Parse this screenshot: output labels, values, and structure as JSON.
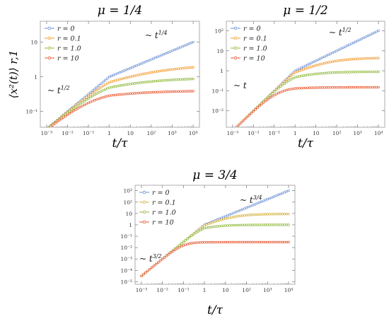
{
  "figure": {
    "ylabel": "⟨x²(t)⟩ r,1",
    "colors": {
      "r0": "#6b8fd6",
      "r01": "#f29a2e",
      "r1": "#8fb83a",
      "r10": "#e8552f"
    }
  },
  "chart_data": [
    {
      "type": "line",
      "title": "μ = 1/4",
      "xlabel": "t/τ",
      "ylabel": "⟨x²(t)⟩ r,1",
      "xscale": "log",
      "yscale": "log",
      "xlim": [
        0.0005,
        20000
      ],
      "ylim": [
        0.035,
        40
      ],
      "xticks": [
        "10⁻³",
        "10⁻²",
        "10⁻¹",
        "1",
        "10",
        "10²",
        "10³",
        "10⁴"
      ],
      "yticks": [
        "10⁻¹",
        "1",
        "10"
      ],
      "legend": "top-left",
      "alpha": 0.5,
      "beta": 0.25,
      "annotations": [
        "~ t^{1/4}",
        "~ t^{1/2}"
      ],
      "series": [
        {
          "name": "r = 0",
          "color": "#6b8fd6",
          "plateau": null
        },
        {
          "name": "r = 0.1",
          "color": "#f29a2e",
          "plateau": 2.3
        },
        {
          "name": "r = 1.0",
          "color": "#8fb83a",
          "plateau": 0.95
        },
        {
          "name": "r = 10",
          "color": "#e8552f",
          "plateau": 0.4
        }
      ]
    },
    {
      "type": "line",
      "title": "μ = 1/2",
      "xlabel": "t/τ",
      "ylabel": "",
      "xscale": "log",
      "yscale": "log",
      "xlim": [
        0.0005,
        20000
      ],
      "ylim": [
        0.0015,
        300
      ],
      "xticks": [
        "10⁻³",
        "10⁻²",
        "10⁻¹",
        "1",
        "10",
        "10²",
        "10³",
        "10⁴"
      ],
      "yticks": [
        "10⁻²",
        "10⁻¹",
        "1",
        "10",
        "10²"
      ],
      "legend": "top-left",
      "alpha": 1.0,
      "beta": 0.5,
      "annotations": [
        "~ t^{1/2}",
        "~ t"
      ],
      "series": [
        {
          "name": "r = 0",
          "color": "#6b8fd6",
          "plateau": null
        },
        {
          "name": "r = 0.1",
          "color": "#f29a2e",
          "plateau": 4.5
        },
        {
          "name": "r = 1.0",
          "color": "#8fb83a",
          "plateau": 0.9
        },
        {
          "name": "r = 10",
          "color": "#e8552f",
          "plateau": 0.15
        }
      ]
    },
    {
      "type": "line",
      "title": "μ = 3/4",
      "xlabel": "t/τ",
      "ylabel": "",
      "xscale": "log",
      "yscale": "log",
      "xlim": [
        0.0005,
        20000
      ],
      "ylim": [
        6e-06,
        3000
      ],
      "xticks": [
        "10⁻³",
        "10⁻²",
        "10⁻¹",
        "1",
        "10",
        "10²",
        "10³",
        "10⁴"
      ],
      "yticks": [
        "10⁻⁵",
        "10⁻⁴",
        "10⁻³",
        "10⁻²",
        "10⁻¹",
        "1",
        "10",
        "10²",
        "10³"
      ],
      "legend": "top-left",
      "alpha": 1.5,
      "beta": 0.75,
      "annotations": [
        "~ t^{3/4}",
        "~ t^{3/2}"
      ],
      "series": [
        {
          "name": "r = 0",
          "color": "#6b8fd6",
          "plateau": null
        },
        {
          "name": "r = 0.1",
          "color": "#d4b13a",
          "plateau": 9
        },
        {
          "name": "r = 1.0",
          "color": "#8fb83a",
          "plateau": 1
        },
        {
          "name": "r = 10",
          "color": "#e8552f",
          "plateau": 0.03
        }
      ]
    }
  ]
}
